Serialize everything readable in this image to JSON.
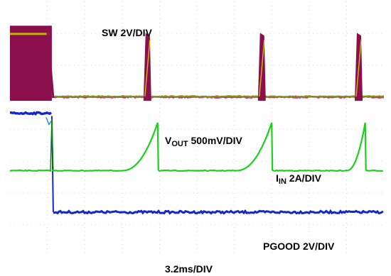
{
  "chart_data": {
    "type": "line",
    "title": "",
    "time_per_div_label": "3.2ms/DIV",
    "grid": true,
    "grid_divisions": {
      "x": 10,
      "y": 8
    },
    "series": [
      {
        "name": "SW",
        "label_main": "SW 2V/DIV",
        "label_sub": "",
        "label_rest": "",
        "color": "#8b0f4c",
        "secondary_color": "#c8c000",
        "description_values": {
          "burst_high_div": 2.9,
          "low_div": 0.1,
          "burst_start_div": [
            0,
            3.5,
            6.6,
            9.2
          ],
          "burst_end_div": [
            1.1,
            3.7,
            6.9,
            9.4
          ]
        }
      },
      {
        "name": "VOUT",
        "label_main": "V",
        "label_sub": "OUT",
        "label_rest": " 500mV/DIV",
        "color": "#e0148c"
      },
      {
        "name": "IIN",
        "label_main": "I",
        "label_sub": "IN",
        "label_rest": " 2A/DIV",
        "color": "#1ad21a",
        "secondary_color": "#0a8a0a"
      },
      {
        "name": "PGOOD",
        "label_main": "PGOOD 2V/DIV",
        "label_sub": "",
        "label_rest": "",
        "color": "#1428c8",
        "secondary_color": "#1a8ad2"
      }
    ],
    "timing_div": {
      "sw_bursts": [
        [
          0.0,
          1.12
        ],
        [
          3.57,
          3.78
        ],
        [
          6.63,
          6.84
        ],
        [
          9.22,
          9.43
        ]
      ],
      "iin_ramps": [
        [
          3.0,
          3.95
        ],
        [
          6.05,
          7.0
        ],
        [
          9.0,
          9.5
        ]
      ],
      "pgood_fall": 1.12,
      "time_span": [
        0,
        10
      ]
    },
    "levels_div": {
      "sw_high": 7.15,
      "sw_low": 5.02,
      "vout": 5.0,
      "pgood_high": 4.5,
      "pgood_low": 1.4,
      "iin_base": 2.7,
      "iin_peak": 4.2
    }
  }
}
